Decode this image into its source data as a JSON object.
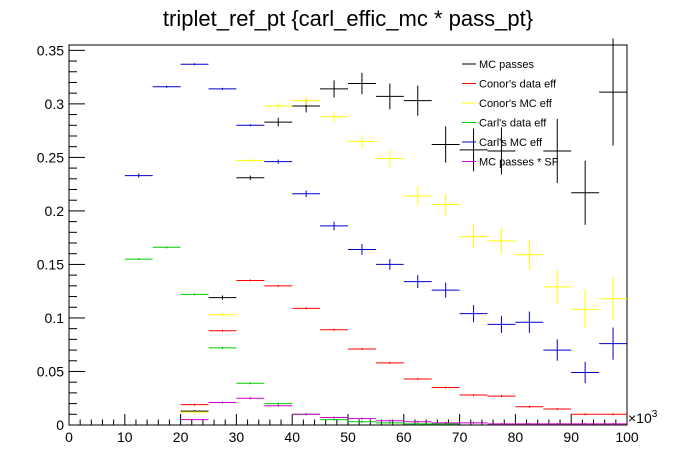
{
  "chart_data": {
    "type": "scatter",
    "title": "triplet_ref_pt  {carl_effic_mc * pass_pt}",
    "xlabel": "",
    "ylabel": "",
    "x_multiplier_label": "×10",
    "x_multiplier_exp": "3",
    "xlim": [
      0,
      100
    ],
    "ylim": [
      0,
      0.355
    ],
    "x_ticks": [
      0,
      10,
      20,
      30,
      40,
      50,
      60,
      70,
      80,
      90,
      100
    ],
    "x_tick_labels": [
      "0",
      "10",
      "20",
      "30",
      "40",
      "50",
      "60",
      "70",
      "80",
      "90",
      "100"
    ],
    "y_ticks": [
      0,
      0.05,
      0.1,
      0.15,
      0.2,
      0.25,
      0.3,
      0.35
    ],
    "y_tick_labels": [
      "0",
      "0.05",
      "0.1",
      "0.15",
      "0.2",
      "0.25",
      "0.3",
      "0.35"
    ],
    "bin_half_width": 2.5,
    "grid": false,
    "legend_position": "top-right",
    "series": [
      {
        "name": "MC passes",
        "color": "#000000",
        "points": [
          {
            "x": 22.5,
            "y": 0.013,
            "err": 0.001
          },
          {
            "x": 27.5,
            "y": 0.119,
            "err": 0.002
          },
          {
            "x": 32.5,
            "y": 0.231,
            "err": 0.002
          },
          {
            "x": 37.5,
            "y": 0.283,
            "err": 0.004
          },
          {
            "x": 42.5,
            "y": 0.298,
            "err": 0.006
          },
          {
            "x": 47.5,
            "y": 0.314,
            "err": 0.008
          },
          {
            "x": 52.5,
            "y": 0.319,
            "err": 0.01
          },
          {
            "x": 57.5,
            "y": 0.307,
            "err": 0.012
          },
          {
            "x": 62.5,
            "y": 0.303,
            "err": 0.014
          },
          {
            "x": 67.5,
            "y": 0.262,
            "err": 0.017
          },
          {
            "x": 72.5,
            "y": 0.257,
            "err": 0.02
          },
          {
            "x": 77.5,
            "y": 0.256,
            "err": 0.022
          },
          {
            "x": 87.5,
            "y": 0.256,
            "err": 0.03
          },
          {
            "x": 92.5,
            "y": 0.217,
            "err": 0.03
          },
          {
            "x": 97.5,
            "y": 0.311,
            "err": 0.05
          }
        ]
      },
      {
        "name": "Conor's data eff",
        "color": "#ff0000",
        "points": [
          {
            "x": 22.5,
            "y": 0.019,
            "err": 0.001
          },
          {
            "x": 27.5,
            "y": 0.088,
            "err": 0.001
          },
          {
            "x": 32.5,
            "y": 0.135,
            "err": 0.001
          },
          {
            "x": 37.5,
            "y": 0.13,
            "err": 0.001
          },
          {
            "x": 42.5,
            "y": 0.109,
            "err": 0.001
          },
          {
            "x": 47.5,
            "y": 0.089,
            "err": 0.001
          },
          {
            "x": 52.5,
            "y": 0.071,
            "err": 0.001
          },
          {
            "x": 57.5,
            "y": 0.058,
            "err": 0.001
          },
          {
            "x": 62.5,
            "y": 0.043,
            "err": 0.001
          },
          {
            "x": 67.5,
            "y": 0.035,
            "err": 0.001
          },
          {
            "x": 72.5,
            "y": 0.028,
            "err": 0.001
          },
          {
            "x": 77.5,
            "y": 0.027,
            "err": 0.001
          },
          {
            "x": 82.5,
            "y": 0.017,
            "err": 0.001
          },
          {
            "x": 87.5,
            "y": 0.015,
            "err": 0.001
          },
          {
            "x": 92.5,
            "y": 0.01,
            "err": 0.001
          },
          {
            "x": 97.5,
            "y": 0.01,
            "err": 0.001
          }
        ]
      },
      {
        "name": "Conor's MC eff",
        "color": "#ffff00",
        "points": [
          {
            "x": 22.5,
            "y": 0.012,
            "err": 0.001
          },
          {
            "x": 27.5,
            "y": 0.103,
            "err": 0.002
          },
          {
            "x": 32.5,
            "y": 0.247,
            "err": 0.002
          },
          {
            "x": 37.5,
            "y": 0.298,
            "err": 0.003
          },
          {
            "x": 42.5,
            "y": 0.303,
            "err": 0.004
          },
          {
            "x": 47.5,
            "y": 0.288,
            "err": 0.005
          },
          {
            "x": 52.5,
            "y": 0.265,
            "err": 0.006
          },
          {
            "x": 57.5,
            "y": 0.249,
            "err": 0.008
          },
          {
            "x": 62.5,
            "y": 0.214,
            "err": 0.009
          },
          {
            "x": 67.5,
            "y": 0.206,
            "err": 0.01
          },
          {
            "x": 72.5,
            "y": 0.176,
            "err": 0.011
          },
          {
            "x": 77.5,
            "y": 0.172,
            "err": 0.012
          },
          {
            "x": 82.5,
            "y": 0.159,
            "err": 0.014
          },
          {
            "x": 87.5,
            "y": 0.129,
            "err": 0.016
          },
          {
            "x": 92.5,
            "y": 0.108,
            "err": 0.018
          },
          {
            "x": 97.5,
            "y": 0.118,
            "err": 0.02
          }
        ]
      },
      {
        "name": "Carl's data eff",
        "color": "#00cc00",
        "points": [
          {
            "x": 12.5,
            "y": 0.155,
            "err": 0.001
          },
          {
            "x": 17.5,
            "y": 0.166,
            "err": 0.001
          },
          {
            "x": 22.5,
            "y": 0.122,
            "err": 0.001
          },
          {
            "x": 27.5,
            "y": 0.072,
            "err": 0.001
          },
          {
            "x": 32.5,
            "y": 0.039,
            "err": 0.001
          },
          {
            "x": 37.5,
            "y": 0.02,
            "err": 0.001
          },
          {
            "x": 42.5,
            "y": 0.01,
            "err": 0.001
          },
          {
            "x": 47.5,
            "y": 0.005,
            "err": 0.001
          },
          {
            "x": 52.5,
            "y": 0.003,
            "err": 0.001
          },
          {
            "x": 57.5,
            "y": 0.002,
            "err": 0.001
          },
          {
            "x": 62.5,
            "y": 0.001,
            "err": 0.001
          },
          {
            "x": 67.5,
            "y": 0.001,
            "err": 0.001
          }
        ]
      },
      {
        "name": "Carl's MC eff",
        "color": "#0000cc",
        "points": [
          {
            "x": 12.5,
            "y": 0.233,
            "err": 0.002
          },
          {
            "x": 17.5,
            "y": 0.316,
            "err": 0.001
          },
          {
            "x": 22.5,
            "y": 0.337,
            "err": 0.001
          },
          {
            "x": 27.5,
            "y": 0.314,
            "err": 0.001
          },
          {
            "x": 32.5,
            "y": 0.28,
            "err": 0.001
          },
          {
            "x": 37.5,
            "y": 0.246,
            "err": 0.002
          },
          {
            "x": 42.5,
            "y": 0.216,
            "err": 0.003
          },
          {
            "x": 47.5,
            "y": 0.186,
            "err": 0.004
          },
          {
            "x": 52.5,
            "y": 0.164,
            "err": 0.005
          },
          {
            "x": 57.5,
            "y": 0.15,
            "err": 0.005
          },
          {
            "x": 62.5,
            "y": 0.134,
            "err": 0.006
          },
          {
            "x": 67.5,
            "y": 0.126,
            "err": 0.007
          },
          {
            "x": 72.5,
            "y": 0.104,
            "err": 0.008
          },
          {
            "x": 77.5,
            "y": 0.094,
            "err": 0.008
          },
          {
            "x": 82.5,
            "y": 0.096,
            "err": 0.01
          },
          {
            "x": 87.5,
            "y": 0.07,
            "err": 0.01
          },
          {
            "x": 92.5,
            "y": 0.049,
            "err": 0.01
          },
          {
            "x": 97.5,
            "y": 0.076,
            "err": 0.015
          }
        ]
      },
      {
        "name": "MC passes * SF",
        "color": "#cc00cc",
        "points": [
          {
            "x": 22.5,
            "y": 0.005,
            "err": 0.0005
          },
          {
            "x": 27.5,
            "y": 0.021,
            "err": 0.001
          },
          {
            "x": 32.5,
            "y": 0.025,
            "err": 0.001
          },
          {
            "x": 37.5,
            "y": 0.018,
            "err": 0.001
          },
          {
            "x": 42.5,
            "y": 0.01,
            "err": 0.001
          },
          {
            "x": 47.5,
            "y": 0.007,
            "err": 0.001
          },
          {
            "x": 52.5,
            "y": 0.006,
            "err": 0.001
          },
          {
            "x": 57.5,
            "y": 0.004,
            "err": 0.001
          },
          {
            "x": 62.5,
            "y": 0.003,
            "err": 0.001
          },
          {
            "x": 67.5,
            "y": 0.002,
            "err": 0.001
          },
          {
            "x": 72.5,
            "y": 0.002,
            "err": 0.001
          },
          {
            "x": 77.5,
            "y": 0.001,
            "err": 0.001
          },
          {
            "x": 82.5,
            "y": 0.001,
            "err": 0.001
          },
          {
            "x": 87.5,
            "y": 0.001,
            "err": 0.001
          },
          {
            "x": 92.5,
            "y": 0.001,
            "err": 0.001
          },
          {
            "x": 97.5,
            "y": 0.001,
            "err": 0.001
          }
        ]
      }
    ]
  }
}
